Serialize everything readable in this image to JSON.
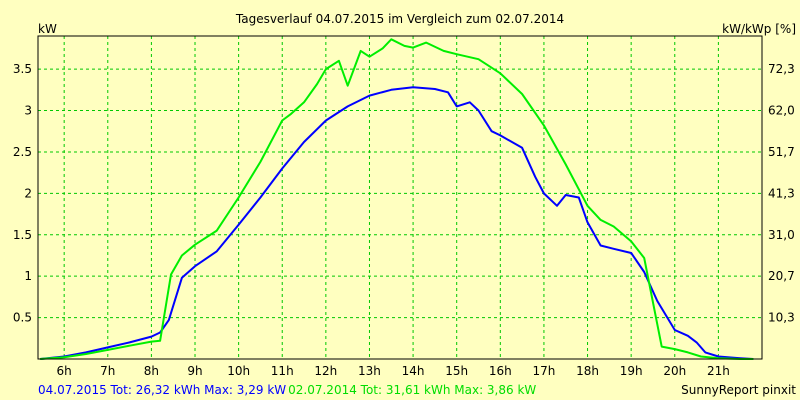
{
  "chart_data": {
    "type": "line",
    "title": "Tagesverlauf 04.07.2015 im Vergleich zum 02.07.2014",
    "ylabel_left": "kW",
    "ylabel_right": "kW/kWp [%]",
    "grid": true,
    "xlim": [
      5.4,
      22.0
    ],
    "ylim": [
      0,
      3.9
    ],
    "x_ticks": [
      {
        "value": 6,
        "label": "6h"
      },
      {
        "value": 7,
        "label": "7h"
      },
      {
        "value": 8,
        "label": "8h"
      },
      {
        "value": 9,
        "label": "9h"
      },
      {
        "value": 10,
        "label": "10h"
      },
      {
        "value": 11,
        "label": "11h"
      },
      {
        "value": 12,
        "label": "12h"
      },
      {
        "value": 13,
        "label": "13h"
      },
      {
        "value": 14,
        "label": "14h"
      },
      {
        "value": 15,
        "label": "15h"
      },
      {
        "value": 16,
        "label": "16h"
      },
      {
        "value": 17,
        "label": "17h"
      },
      {
        "value": 18,
        "label": "18h"
      },
      {
        "value": 19,
        "label": "19h"
      },
      {
        "value": 20,
        "label": "20h"
      },
      {
        "value": 21,
        "label": "21h"
      }
    ],
    "y_ticks_left": [
      {
        "value": 0.5,
        "label": "0.5"
      },
      {
        "value": 1,
        "label": "1"
      },
      {
        "value": 1.5,
        "label": "1.5"
      },
      {
        "value": 2,
        "label": "2"
      },
      {
        "value": 2.5,
        "label": "2.5"
      },
      {
        "value": 3,
        "label": "3"
      },
      {
        "value": 3.5,
        "label": "3.5"
      }
    ],
    "y_ticks_right": [
      {
        "value": 0.5,
        "label": "10,3"
      },
      {
        "value": 1,
        "label": "20,7"
      },
      {
        "value": 1.5,
        "label": "31,0"
      },
      {
        "value": 2,
        "label": "41,3"
      },
      {
        "value": 2.5,
        "label": "51,7"
      },
      {
        "value": 3,
        "label": "62,0"
      },
      {
        "value": 3.5,
        "label": "72,3"
      }
    ],
    "series": [
      {
        "color": "#0000FF",
        "points": [
          [
            5.45,
            0.0
          ],
          [
            6.0,
            0.03
          ],
          [
            6.5,
            0.08
          ],
          [
            7.0,
            0.14
          ],
          [
            7.5,
            0.2
          ],
          [
            8.0,
            0.27
          ],
          [
            8.2,
            0.32
          ],
          [
            8.4,
            0.47
          ],
          [
            8.7,
            0.98
          ],
          [
            9.0,
            1.12
          ],
          [
            9.5,
            1.3
          ],
          [
            10.0,
            1.62
          ],
          [
            10.5,
            1.95
          ],
          [
            11.0,
            2.3
          ],
          [
            11.5,
            2.62
          ],
          [
            12.0,
            2.88
          ],
          [
            12.5,
            3.05
          ],
          [
            13.0,
            3.18
          ],
          [
            13.5,
            3.25
          ],
          [
            14.0,
            3.28
          ],
          [
            14.5,
            3.26
          ],
          [
            14.8,
            3.22
          ],
          [
            15.0,
            3.05
          ],
          [
            15.3,
            3.1
          ],
          [
            15.5,
            3.0
          ],
          [
            15.8,
            2.75
          ],
          [
            16.0,
            2.7
          ],
          [
            16.5,
            2.55
          ],
          [
            16.8,
            2.2
          ],
          [
            17.0,
            2.0
          ],
          [
            17.3,
            1.85
          ],
          [
            17.5,
            1.98
          ],
          [
            17.8,
            1.95
          ],
          [
            18.0,
            1.65
          ],
          [
            18.3,
            1.37
          ],
          [
            18.6,
            1.33
          ],
          [
            19.0,
            1.28
          ],
          [
            19.3,
            1.05
          ],
          [
            19.6,
            0.7
          ],
          [
            20.0,
            0.35
          ],
          [
            20.3,
            0.28
          ],
          [
            20.5,
            0.2
          ],
          [
            20.7,
            0.08
          ],
          [
            21.0,
            0.03
          ],
          [
            21.5,
            0.01
          ],
          [
            21.8,
            0.0
          ]
        ]
      },
      {
        "color": "#00EE00",
        "points": [
          [
            5.45,
            0.0
          ],
          [
            6.0,
            0.02
          ],
          [
            6.5,
            0.06
          ],
          [
            7.0,
            0.11
          ],
          [
            7.5,
            0.16
          ],
          [
            8.0,
            0.21
          ],
          [
            8.2,
            0.22
          ],
          [
            8.45,
            1.02
          ],
          [
            8.7,
            1.25
          ],
          [
            9.0,
            1.38
          ],
          [
            9.5,
            1.55
          ],
          [
            10.0,
            1.95
          ],
          [
            10.5,
            2.38
          ],
          [
            11.0,
            2.88
          ],
          [
            11.2,
            2.96
          ],
          [
            11.5,
            3.1
          ],
          [
            11.8,
            3.32
          ],
          [
            12.0,
            3.5
          ],
          [
            12.3,
            3.6
          ],
          [
            12.5,
            3.3
          ],
          [
            12.8,
            3.72
          ],
          [
            13.0,
            3.65
          ],
          [
            13.3,
            3.75
          ],
          [
            13.5,
            3.86
          ],
          [
            13.8,
            3.78
          ],
          [
            14.0,
            3.76
          ],
          [
            14.3,
            3.82
          ],
          [
            14.7,
            3.72
          ],
          [
            15.0,
            3.68
          ],
          [
            15.5,
            3.62
          ],
          [
            16.0,
            3.45
          ],
          [
            16.5,
            3.2
          ],
          [
            17.0,
            2.82
          ],
          [
            17.5,
            2.35
          ],
          [
            18.0,
            1.85
          ],
          [
            18.3,
            1.68
          ],
          [
            18.6,
            1.6
          ],
          [
            19.0,
            1.42
          ],
          [
            19.3,
            1.22
          ],
          [
            19.7,
            0.15
          ],
          [
            20.0,
            0.12
          ],
          [
            20.3,
            0.08
          ],
          [
            20.6,
            0.03
          ],
          [
            21.0,
            0.01
          ],
          [
            21.5,
            0.0
          ],
          [
            21.8,
            0.0
          ]
        ]
      }
    ],
    "legend": [
      {
        "text": "04.07.2015 Tot: 26,32 kWh Max: 3,29 kW",
        "color": "#0000FF"
      },
      {
        "text": "02.07.2014 Tot: 31,61 kWh Max: 3,86 kW",
        "color": "#00DD00"
      }
    ],
    "footer_right": "SunnyReport pinxit",
    "colors": {
      "background": "#FFFFC0",
      "grid": "#00C800",
      "axis": "#000000"
    }
  }
}
